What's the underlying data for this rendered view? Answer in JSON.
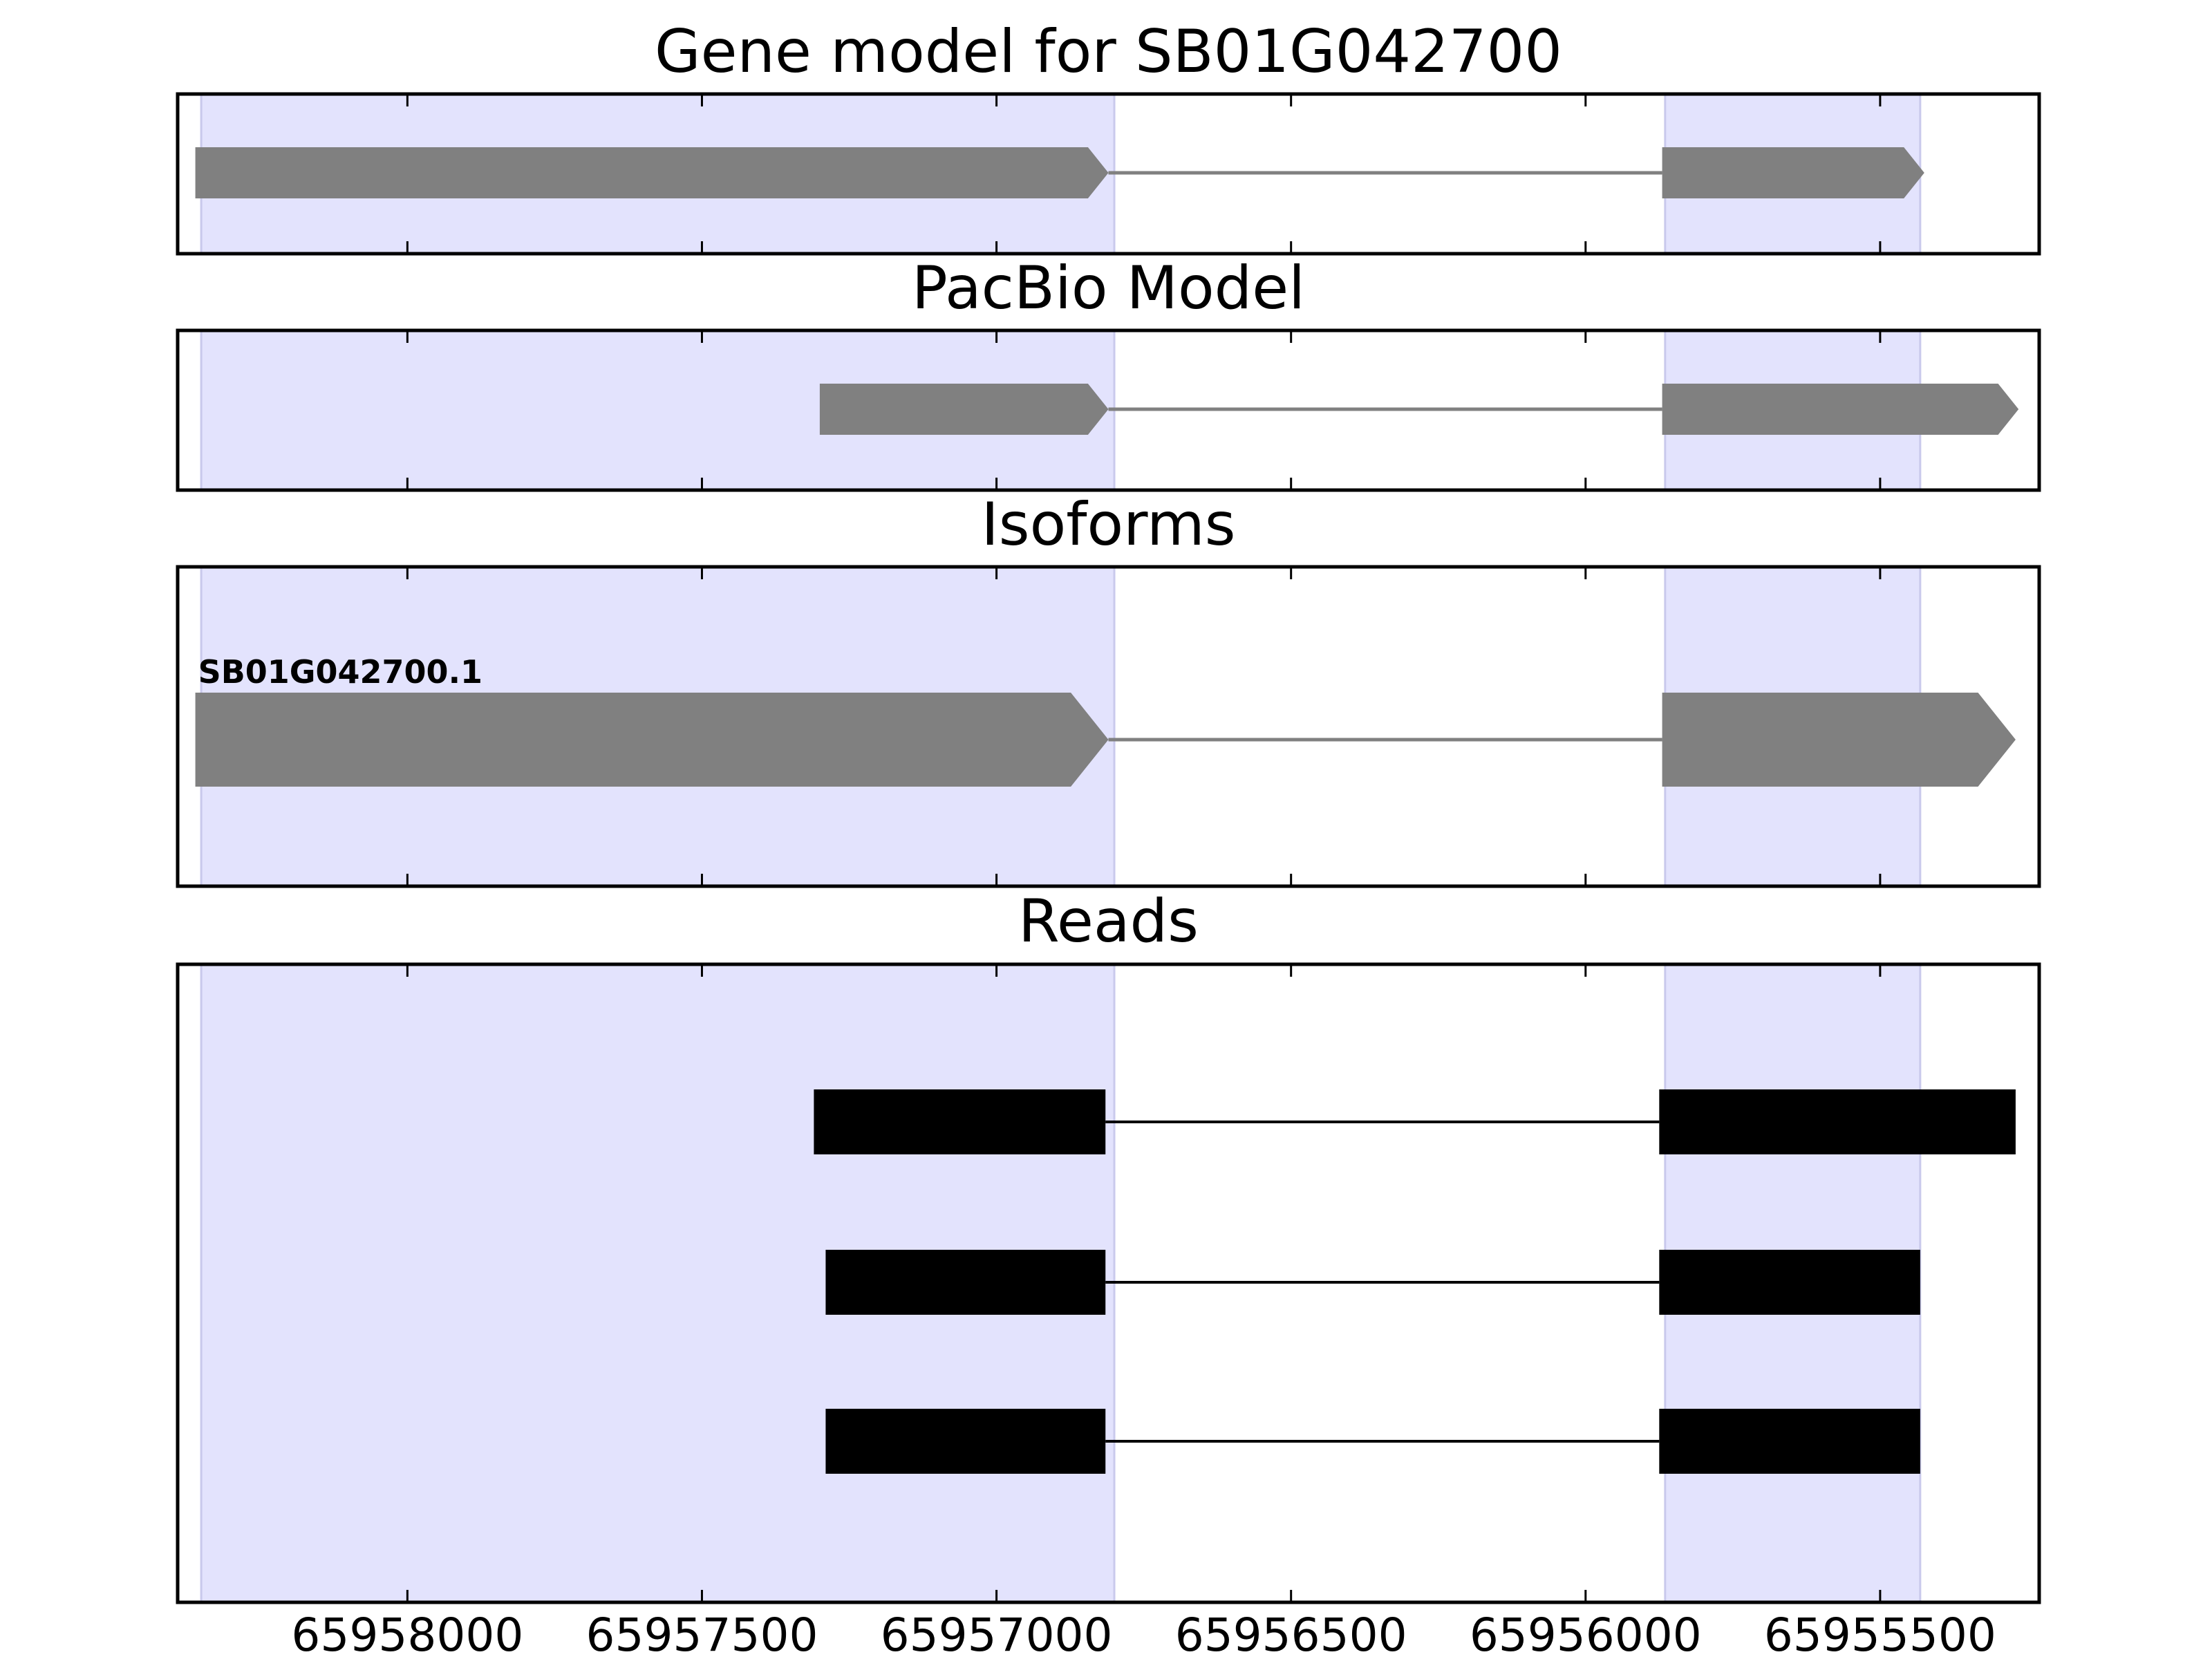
{
  "chart_data": {
    "type": "gene-structure",
    "x_axis": {
      "direction": "descending",
      "xlim": [
        65958390,
        65955230
      ],
      "ticks": [
        65958000,
        65957500,
        65957000,
        65956500,
        65956000,
        65955500
      ],
      "tick_labels": [
        "65958000",
        "65957500",
        "65957000",
        "65956500",
        "65956000",
        "65955500"
      ]
    },
    "highlight_color": "#e3e3fd",
    "highlight_regions": [
      {
        "start": 65958350,
        "end": 65956800
      },
      {
        "start": 65955865,
        "end": 65955432
      }
    ],
    "panels": [
      {
        "title": "Gene model for SB01G042700",
        "style": "gene-arrow",
        "color": "#808080",
        "tracks": [
          {
            "label": "",
            "exons": [
              [
                65958360,
                65956810
              ],
              [
                65955870,
                65955425
              ]
            ]
          }
        ]
      },
      {
        "title": "PacBio Model",
        "style": "gene-arrow",
        "color": "#808080",
        "tracks": [
          {
            "label": "",
            "exons": [
              [
                65957300,
                65956810
              ],
              [
                65955870,
                65955265
              ]
            ]
          }
        ]
      },
      {
        "title": "Isoforms",
        "style": "gene-arrow",
        "color": "#808080",
        "tracks": [
          {
            "label": "SB01G042700.1",
            "exons": [
              [
                65958360,
                65956810
              ],
              [
                65955870,
                65955270
              ]
            ]
          }
        ]
      },
      {
        "title": "Reads",
        "style": "read-box",
        "color": "#000000",
        "tracks": [
          {
            "label": "",
            "exons": [
              [
                65957310,
                65956815
              ],
              [
                65955875,
                65955270
              ]
            ]
          },
          {
            "label": "",
            "exons": [
              [
                65957290,
                65956815
              ],
              [
                65955875,
                65955432
              ]
            ]
          },
          {
            "label": "",
            "exons": [
              [
                65957290,
                65956815
              ],
              [
                65955875,
                65955432
              ]
            ]
          }
        ]
      }
    ]
  }
}
